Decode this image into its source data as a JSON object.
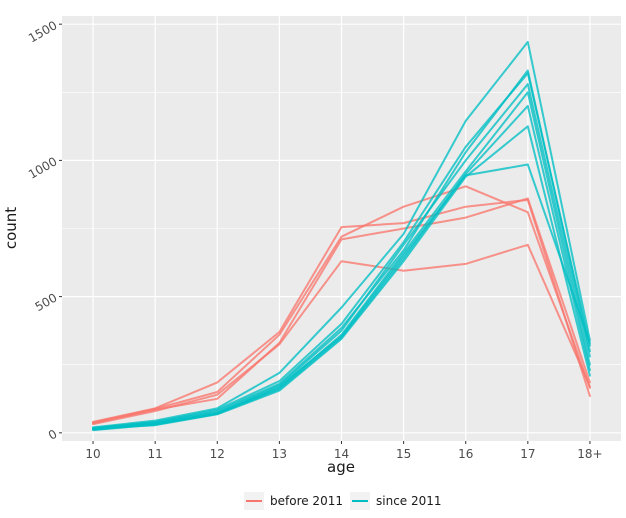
{
  "chart_data": {
    "type": "line",
    "categories": [
      "10",
      "11",
      "12",
      "13",
      "14",
      "15",
      "16",
      "17",
      "18+"
    ],
    "xlabel": "age",
    "ylabel": "count",
    "yticks": [
      0,
      500,
      1000,
      1500
    ],
    "ytick_labels": [
      "0",
      "500",
      "1000",
      "1500"
    ],
    "ylim": [
      -30,
      1530
    ],
    "grid": true,
    "legend_position": "bottom",
    "groups": [
      {
        "name": "before 2011",
        "color": "#F8766D"
      },
      {
        "name": "since 2011",
        "color": "#00BFC4"
      }
    ],
    "series": [
      {
        "group": "before 2011",
        "values": [
          40,
          90,
          185,
          370,
          755,
          770,
          830,
          855,
          135
        ]
      },
      {
        "group": "before 2011",
        "values": [
          38,
          88,
          150,
          360,
          720,
          830,
          905,
          810,
          165
        ]
      },
      {
        "group": "before 2011",
        "values": [
          35,
          85,
          125,
          330,
          710,
          750,
          790,
          860,
          185
        ]
      },
      {
        "group": "before 2011",
        "values": [
          32,
          80,
          140,
          325,
          630,
          595,
          620,
          690,
          170
        ]
      },
      {
        "group": "since 2011",
        "values": [
          20,
          45,
          90,
          220,
          460,
          730,
          1145,
          1435,
          340
        ]
      },
      {
        "group": "since 2011",
        "values": [
          18,
          40,
          85,
          190,
          400,
          700,
          1050,
          1320,
          320
        ]
      },
      {
        "group": "since 2011",
        "values": [
          15,
          38,
          80,
          180,
          385,
          670,
          1030,
          1330,
          300
        ]
      },
      {
        "group": "since 2011",
        "values": [
          14,
          35,
          75,
          175,
          375,
          690,
          1000,
          1280,
          280
        ]
      },
      {
        "group": "since 2011",
        "values": [
          12,
          33,
          72,
          165,
          360,
          660,
          960,
          1250,
          250
        ]
      },
      {
        "group": "since 2011",
        "values": [
          10,
          30,
          70,
          160,
          350,
          640,
          950,
          1200,
          230
        ]
      },
      {
        "group": "since 2011",
        "values": [
          15,
          28,
          68,
          155,
          345,
          630,
          940,
          1125,
          210
        ]
      },
      {
        "group": "since 2011",
        "values": [
          12,
          32,
          70,
          170,
          355,
          650,
          945,
          985,
          330
        ]
      }
    ]
  }
}
